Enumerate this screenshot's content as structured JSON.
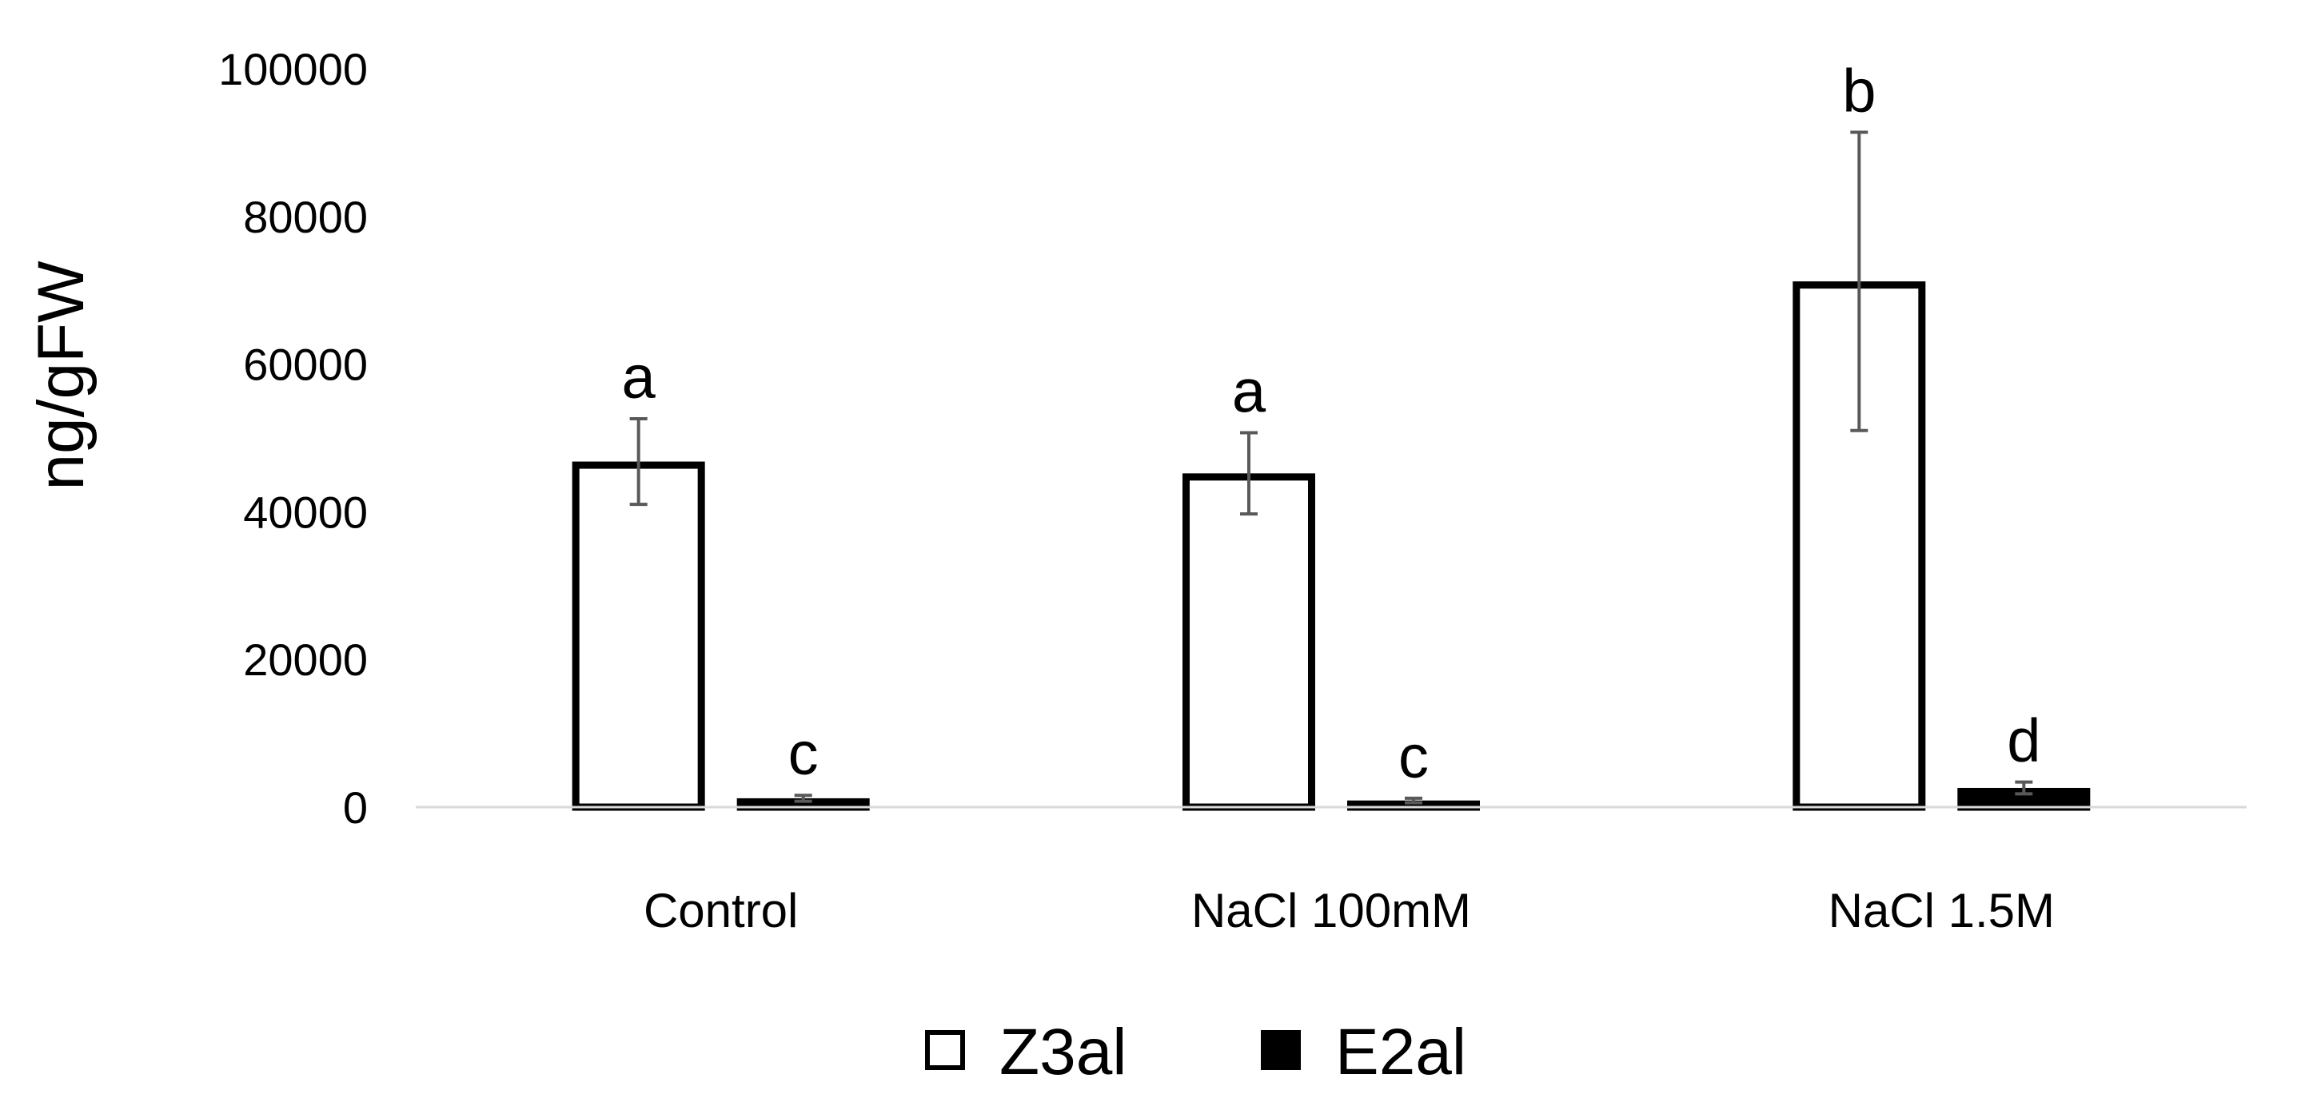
{
  "chart_data": {
    "type": "bar",
    "title": "",
    "xlabel": "",
    "ylabel": "ng/gFW",
    "ylim": [
      0,
      100000
    ],
    "yticks": [
      0,
      20000,
      40000,
      60000,
      80000,
      100000
    ],
    "ytick_labels": [
      "0",
      "20000",
      "40000",
      "60000",
      "80000",
      "100000"
    ],
    "grid": false,
    "legend_position": "bottom",
    "categories": [
      "Control",
      "NaCl 100mM",
      "NaCl 1.5M"
    ],
    "series": [
      {
        "name": "Z3al",
        "values": [
          46800,
          45200,
          71200
        ],
        "error": [
          5800,
          5500,
          20200
        ],
        "significance": [
          "a",
          "a",
          "b"
        ],
        "fill": "#ffffff",
        "stroke": "#000000"
      },
      {
        "name": "E2al",
        "values": [
          1200,
          900,
          2600
        ],
        "error": [
          400,
          300,
          800
        ],
        "significance": [
          "c",
          "c",
          "d"
        ],
        "fill": "#000000",
        "stroke": "#000000"
      }
    ],
    "colors": {
      "axis": "#d9d9d9",
      "error_bar": "#595959",
      "text": "#000000"
    }
  }
}
